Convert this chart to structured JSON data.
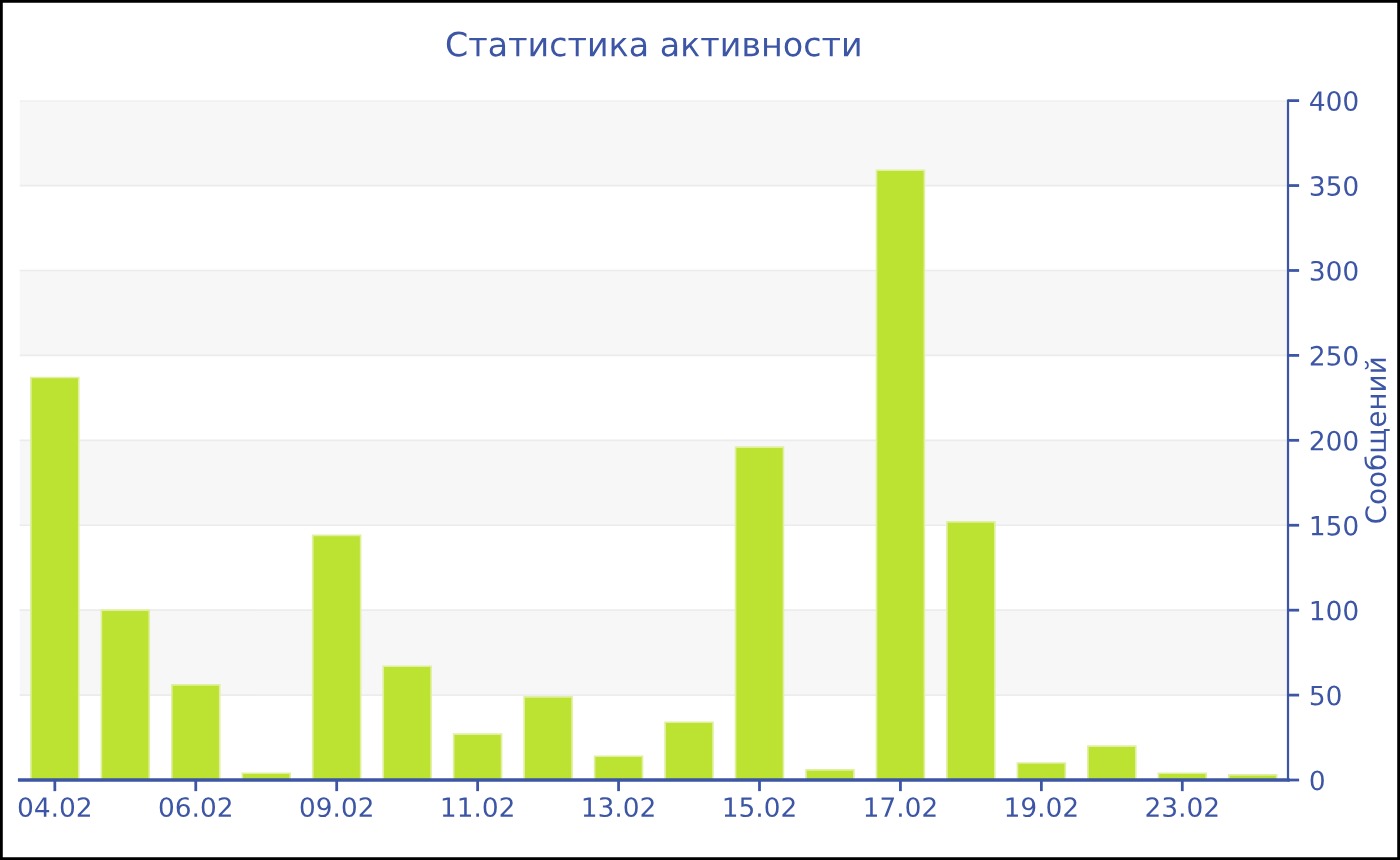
{
  "chart_data": {
    "type": "bar",
    "title": "Статистика активности",
    "ylabel": "Сообщений",
    "categories": [
      "04.02",
      null,
      "06.02",
      null,
      "09.02",
      null,
      "11.02",
      null,
      "13.02",
      null,
      "15.02",
      null,
      "17.02",
      null,
      "19.02",
      null,
      "23.02",
      null
    ],
    "values": [
      237,
      100,
      56,
      4,
      144,
      67,
      27,
      49,
      14,
      34,
      196,
      6,
      359,
      152,
      10,
      20,
      4,
      3
    ],
    "color": "#bce232",
    "ylim": [
      0,
      400
    ],
    "yticks": [
      0,
      50,
      100,
      150,
      200,
      250,
      300,
      350,
      400
    ],
    "grid": "y",
    "legend": false
  }
}
